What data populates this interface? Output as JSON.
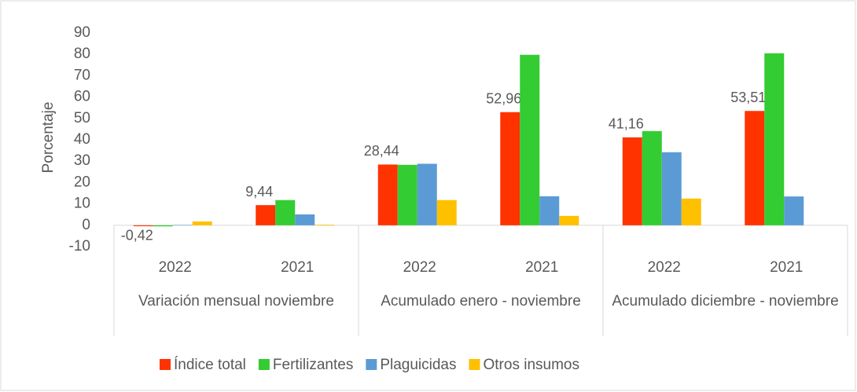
{
  "chart_data": {
    "type": "bar",
    "y_label": "Porcentaje",
    "categories": [
      "2022",
      "2021",
      "2022",
      "2021",
      "2022",
      "2021"
    ],
    "groups": [
      {
        "label": "Variación mensual noviembre",
        "span": 2
      },
      {
        "label": "Acumulado enero - noviembre",
        "span": 2
      },
      {
        "label": "Acumulado diciembre - noviembre",
        "span": 2
      }
    ],
    "series": [
      {
        "name": "Índice total",
        "color": "#ff3300",
        "values": [
          -0.42,
          9.44,
          28.44,
          52.96,
          41.16,
          53.51
        ],
        "value_labels": [
          "-0,42",
          "9,44",
          "28,44",
          "52,96",
          "41,16",
          "53,51"
        ]
      },
      {
        "name": "Fertilizantes",
        "color": "#33cc33",
        "values": [
          -0.5,
          11.8,
          28.3,
          79.8,
          44.1,
          80.5
        ]
      },
      {
        "name": "Plaguicidas",
        "color": "#5b9bd5",
        "values": [
          0.2,
          5.1,
          28.8,
          13.6,
          34.2,
          13.5
        ]
      },
      {
        "name": "Otros insumos",
        "color": "#ffc000",
        "values": [
          1.8,
          0.3,
          11.8,
          4.4,
          12.5,
          0
        ]
      }
    ],
    "ylim": [
      -10,
      90
    ],
    "yticks": [
      -10,
      0,
      10,
      20,
      30,
      40,
      50,
      60,
      70,
      80,
      90
    ],
    "grid": false,
    "legend": "bottom"
  }
}
